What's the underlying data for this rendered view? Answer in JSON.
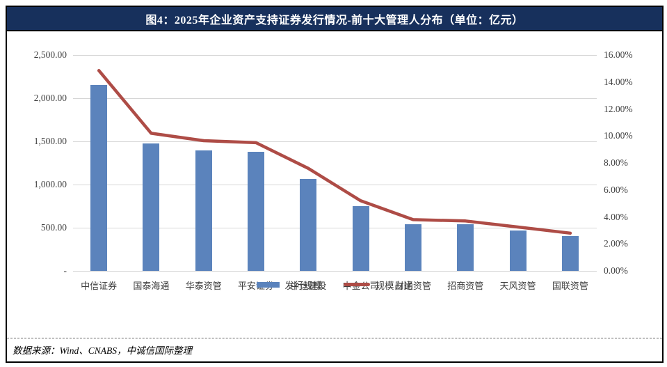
{
  "title": "图4：2025年企业资产支持证券发行情况-前十大管理人分布（单位：亿元）",
  "source_note": "数据来源：Wind、CNABS，中诚信国际整理",
  "colors": {
    "title_bar_bg": "#17305C",
    "title_text": "#FFFFFF",
    "bar_fill": "#5B83BC",
    "line_stroke": "#AE4C46",
    "gridline": "#D6D6D6",
    "axis_text": "#3F3F3F",
    "frame_border": "#000000"
  },
  "chart_data": {
    "type": "bar",
    "subtype": "combo-bar-line-dual-axis",
    "categories": [
      "中信证券",
      "国泰海通",
      "华泰资管",
      "平安证券",
      "中信建投",
      "中金公司",
      "财通资管",
      "招商资管",
      "天风资管",
      "国联资管"
    ],
    "series": [
      {
        "name": "发行规模",
        "type": "bar",
        "axis": "left",
        "color": "#5B83BC",
        "values": [
          2150,
          1478,
          1398,
          1377,
          1066,
          750,
          540,
          537,
          468,
          405
        ]
      },
      {
        "name": "规模占比",
        "type": "line",
        "axis": "right",
        "color": "#AE4C46",
        "values": [
          14.85,
          10.2,
          9.65,
          9.5,
          7.6,
          5.2,
          3.8,
          3.7,
          3.25,
          2.8
        ]
      }
    ],
    "left_axis": {
      "min": 0,
      "max": 2500,
      "step": 500,
      "tick_labels_top_down": [
        "2,500.00",
        "2,000.00",
        "1,500.00",
        "1,000.00",
        "500.00",
        "-"
      ]
    },
    "right_axis": {
      "min": 0,
      "max": 16,
      "step": 2,
      "tick_labels_top_down": [
        "16.00%",
        "14.00%",
        "12.00%",
        "10.00%",
        "8.00%",
        "6.00%",
        "4.00%",
        "2.00%",
        "0.00%"
      ]
    },
    "grid": "horizontal gridlines at left-axis steps",
    "legend_position": "bottom"
  }
}
